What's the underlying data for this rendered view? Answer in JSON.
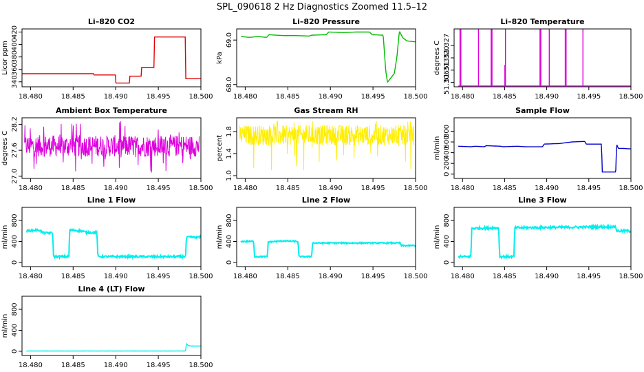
{
  "page": {
    "title": "SPL_090618  2 Hz Diagnostics Zoomed 11.5–12"
  },
  "chart_data": [
    {
      "type": "line",
      "title": "Li–820 CO2",
      "ylabel": "Licor ppm",
      "xlim": [
        18.479,
        18.5
      ],
      "ylim": [
        332,
        425
      ],
      "xticks": [
        18.48,
        18.485,
        18.49,
        18.495,
        18.5
      ],
      "xtick_labels": [
        "18.480",
        "18.485",
        "18.490",
        "18.495",
        "18.500"
      ],
      "yticks": [
        340,
        360,
        380,
        400,
        420
      ],
      "ytick_labels": [
        "340",
        "360",
        "380",
        "400",
        "420"
      ],
      "color": "#e00000",
      "series": [
        {
          "x": [
            18.479,
            18.4874,
            18.4874,
            18.49,
            18.49,
            18.4916,
            18.4916,
            18.493,
            18.493,
            18.4945,
            18.4945,
            18.4982,
            18.4982,
            18.5
          ],
          "y": [
            353,
            353,
            351,
            351,
            338,
            338,
            349,
            349,
            363,
            363,
            412,
            412,
            345,
            345
          ]
        }
      ]
    },
    {
      "type": "line",
      "title": "Li–820 Pressure",
      "ylabel": "kPa",
      "xlim": [
        18.479,
        18.5
      ],
      "ylim": [
        67.95,
        69.25
      ],
      "xticks": [
        18.48,
        18.485,
        18.49,
        18.495,
        18.5
      ],
      "xtick_labels": [
        "18.480",
        "18.485",
        "18.490",
        "18.495",
        "18.500"
      ],
      "yticks": [
        68.0,
        69.0
      ],
      "ytick_labels": [
        "68.0",
        "69.0"
      ],
      "color": "#00bb00",
      "series": [
        {
          "x": [
            18.4795,
            18.4805,
            18.4815,
            18.4825,
            18.4828,
            18.4845,
            18.486,
            18.4875,
            18.4878,
            18.4895,
            18.4898,
            18.4915,
            18.493,
            18.4946,
            18.4949,
            18.4962,
            18.4965,
            18.4967,
            18.4975,
            18.4978,
            18.4981,
            18.4985,
            18.499,
            18.5
          ],
          "y": [
            69.08,
            69.06,
            69.08,
            69.06,
            69.12,
            69.1,
            69.1,
            69.09,
            69.11,
            69.12,
            69.18,
            69.17,
            69.18,
            69.18,
            69.12,
            69.11,
            68.3,
            68.05,
            68.25,
            68.6,
            69.2,
            69.05,
            68.98,
            68.96
          ]
        }
      ]
    },
    {
      "type": "line",
      "title": "Li–820 Temperature",
      "ylabel": "degrees C",
      "xlim": [
        18.479,
        18.5
      ],
      "ylim": [
        51.3035,
        51.3365
      ],
      "xticks": [
        18.48,
        18.485,
        18.49,
        18.495,
        18.5
      ],
      "xtick_labels": [
        "18.480",
        "18.485",
        "18.490",
        "18.495",
        "18.500"
      ],
      "yticks": [
        51.306,
        51.313,
        51.32,
        51.327
      ],
      "ytick_labels": [
        "51.306",
        "51.313",
        "51.320",
        "51.327"
      ],
      "color": "#dd00dd",
      "baseline": 51.304,
      "spikes": [
        18.4797,
        18.4798,
        18.4819,
        18.4834,
        18.4835,
        18.4851,
        18.4892,
        18.4893,
        18.4903,
        18.4922,
        18.4923,
        18.4943
      ],
      "spike_top": 51.337,
      "short_spike": {
        "x": 18.4851,
        "y": 51.316
      }
    },
    {
      "type": "line",
      "title": "Ambient Box Temperature",
      "ylabel": "degrees C",
      "xlim": [
        18.479,
        18.5
      ],
      "ylim": [
        26.95,
        28.35
      ],
      "xticks": [
        18.48,
        18.485,
        18.49,
        18.495,
        18.5
      ],
      "xtick_labels": [
        "18.480",
        "18.485",
        "18.490",
        "18.495",
        "18.500"
      ],
      "yticks": [
        27.0,
        27.6,
        28.2
      ],
      "ytick_labels": [
        "27.0",
        "27.6",
        "28.2"
      ],
      "color": "#dd00dd",
      "band": {
        "lo": 27.45,
        "hi": 27.95,
        "dip_lo": 27.08,
        "spike_hi": 28.28
      }
    },
    {
      "type": "line",
      "title": "Gas Stream RH",
      "ylabel": "percent",
      "xlim": [
        18.479,
        18.5
      ],
      "ylim": [
        0.95,
        2.05
      ],
      "xticks": [
        18.48,
        18.485,
        18.49,
        18.495,
        18.5
      ],
      "xtick_labels": [
        "18.480",
        "18.485",
        "18.490",
        "18.495",
        "18.500"
      ],
      "yticks": [
        1.0,
        1.4,
        1.8
      ],
      "ytick_labels": [
        "1.0",
        "1.4",
        "1.8"
      ],
      "color": "#ffee00",
      "band": {
        "lo": 1.55,
        "hi": 1.92,
        "dip_lo": 1.0,
        "spike_hi": 2.0
      }
    },
    {
      "type": "line",
      "title": "Sample Flow",
      "ylabel": "ml/min",
      "xlim": [
        18.479,
        18.5
      ],
      "ylim": [
        -80,
        1050
      ],
      "xticks": [
        18.48,
        18.485,
        18.49,
        18.495,
        18.5
      ],
      "xtick_labels": [
        "18.480",
        "18.485",
        "18.490",
        "18.495",
        "18.500"
      ],
      "yticks": [
        0,
        200,
        400,
        600,
        800
      ],
      "ytick_labels": [
        "0",
        "200",
        "400",
        "600",
        "800"
      ],
      "color": "#0000cc",
      "series": [
        {
          "x": [
            18.4795,
            18.481,
            18.4815,
            18.4826,
            18.4828,
            18.4845,
            18.4848,
            18.4865,
            18.4875,
            18.4895,
            18.4897,
            18.4915,
            18.493,
            18.4945,
            18.4947,
            18.4965,
            18.4966,
            18.4982,
            18.4983,
            18.4985,
            18.499,
            18.5
          ],
          "y": [
            520,
            510,
            520,
            510,
            530,
            520,
            510,
            520,
            510,
            510,
            560,
            570,
            600,
            610,
            560,
            560,
            40,
            40,
            560,
            480,
            480,
            470
          ]
        }
      ]
    },
    {
      "type": "line",
      "title": "Line 1 Flow",
      "ylabel": "ml/min",
      "xlim": [
        18.479,
        18.5
      ],
      "ylim": [
        -80,
        1050
      ],
      "xticks": [
        18.48,
        18.485,
        18.49,
        18.495,
        18.5
      ],
      "xtick_labels": [
        "18.480",
        "18.485",
        "18.490",
        "18.495",
        "18.500"
      ],
      "yticks": [
        0,
        400,
        800
      ],
      "ytick_labels": [
        "0",
        "400",
        "800"
      ],
      "color": "#00eeee",
      "series": [
        {
          "x": [
            18.4795,
            18.481,
            18.4815,
            18.4826,
            18.4827,
            18.4845,
            18.4846,
            18.486,
            18.4866,
            18.4878,
            18.4879,
            18.4982,
            18.4983,
            18.5
          ],
          "y": [
            600,
            620,
            560,
            560,
            110,
            110,
            620,
            600,
            570,
            570,
            110,
            110,
            480,
            480
          ]
        }
      ],
      "noise": 40
    },
    {
      "type": "line",
      "title": "Line 2 Flow",
      "ylabel": "ml/min",
      "xlim": [
        18.479,
        18.5
      ],
      "ylim": [
        -80,
        1050
      ],
      "xticks": [
        18.48,
        18.485,
        18.49,
        18.495,
        18.5
      ],
      "xtick_labels": [
        "18.480",
        "18.485",
        "18.490",
        "18.495",
        "18.500"
      ],
      "yticks": [
        0,
        400,
        800
      ],
      "ytick_labels": [
        "0",
        "400",
        "800"
      ],
      "color": "#00eeee",
      "series": [
        {
          "x": [
            18.4795,
            18.481,
            18.4811,
            18.4826,
            18.4827,
            18.4845,
            18.4846,
            18.4862,
            18.4863,
            18.4878,
            18.4879,
            18.4982,
            18.4983,
            18.5
          ],
          "y": [
            400,
            400,
            110,
            110,
            390,
            410,
            410,
            400,
            110,
            110,
            370,
            370,
            320,
            320
          ]
        }
      ],
      "noise": 25
    },
    {
      "type": "line",
      "title": "Line 3 Flow",
      "ylabel": "ml/min",
      "xlim": [
        18.479,
        18.5
      ],
      "ylim": [
        -80,
        1050
      ],
      "xticks": [
        18.48,
        18.485,
        18.49,
        18.495,
        18.5
      ],
      "xtick_labels": [
        "18.480",
        "18.485",
        "18.490",
        "18.495",
        "18.500"
      ],
      "yticks": [
        0,
        400,
        800
      ],
      "ytick_labels": [
        "0",
        "400",
        "800"
      ],
      "color": "#00eeee",
      "series": [
        {
          "x": [
            18.4795,
            18.481,
            18.4811,
            18.4843,
            18.4844,
            18.4861,
            18.4862,
            18.4982,
            18.4983,
            18.5
          ],
          "y": [
            110,
            110,
            650,
            660,
            110,
            110,
            660,
            680,
            600,
            600
          ]
        }
      ],
      "noise": 45
    },
    {
      "type": "line",
      "title": "Line 4 (LT) Flow",
      "ylabel": "ml/min",
      "xlim": [
        18.479,
        18.5
      ],
      "ylim": [
        -80,
        1050
      ],
      "xticks": [
        18.48,
        18.485,
        18.49,
        18.495,
        18.5
      ],
      "xtick_labels": [
        "18.480",
        "18.485",
        "18.490",
        "18.495",
        "18.500"
      ],
      "yticks": [
        0,
        400,
        800
      ],
      "ytick_labels": [
        "0",
        "400",
        "800"
      ],
      "color": "#00eeee",
      "series": [
        {
          "x": [
            18.4795,
            18.4982,
            18.4983,
            18.4985,
            18.4988,
            18.5
          ],
          "y": [
            5,
            5,
            150,
            110,
            100,
            100
          ]
        }
      ],
      "noise": 4
    }
  ]
}
